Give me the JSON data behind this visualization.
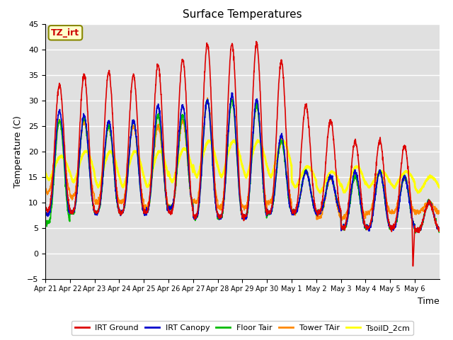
{
  "title": "Surface Temperatures",
  "xlabel": "Time",
  "ylabel": "Temperature (C)",
  "ylim": [
    -5,
    45
  ],
  "bg_color": "#e0e0e0",
  "fig_bg": "#ffffff",
  "annotation_text": "TZ_irt",
  "annotation_bg": "#ffffcc",
  "annotation_border": "#cc0000",
  "series": {
    "IRT Ground": {
      "color": "#dd0000",
      "lw": 1.2
    },
    "IRT Canopy": {
      "color": "#0000cc",
      "lw": 1.2
    },
    "Floor Tair": {
      "color": "#00bb00",
      "lw": 1.2
    },
    "Tower TAir": {
      "color": "#ff8800",
      "lw": 1.2
    },
    "TsoilD_2cm": {
      "color": "#ffff00",
      "lw": 2.0
    }
  },
  "xtick_labels": [
    "Apr 21",
    "Apr 22",
    "Apr 23",
    "Apr 24",
    "Apr 25",
    "Apr 26",
    "Apr 27",
    "Apr 28",
    "Apr 29",
    "Apr 30",
    "May 1",
    "May 2",
    "May 3",
    "May 4",
    "May 5",
    "May 6"
  ],
  "n_days": 16,
  "pts_per_day": 144,
  "day_peaks_irt_ground": [
    33,
    35,
    35.5,
    35,
    37,
    38,
    41,
    41,
    41,
    37.5,
    29,
    26,
    22,
    22,
    21,
    10
  ],
  "day_bases_irt_ground": [
    8.5,
    8,
    8,
    8,
    8,
    8,
    7,
    7,
    7,
    8,
    8,
    8,
    5,
    5,
    5,
    4.5
  ],
  "day_peaks_irt_canopy": [
    28,
    27,
    26,
    26,
    29,
    29,
    30,
    31,
    30,
    23,
    16,
    15,
    16,
    16,
    15,
    10
  ],
  "day_bases_irt_canopy": [
    7.5,
    8,
    8,
    8,
    8,
    9,
    7,
    7,
    7,
    8,
    8,
    8,
    5,
    5,
    5,
    4.5
  ],
  "day_peaks_floor_tair": [
    26,
    26.5,
    25,
    26,
    27,
    27,
    30,
    30,
    29,
    22,
    16,
    15,
    15,
    16,
    15,
    10
  ],
  "day_bases_floor_tair": [
    6,
    8,
    8,
    8,
    8,
    9,
    7,
    7,
    7,
    8,
    8,
    8,
    5,
    5,
    5,
    4.5
  ],
  "day_peaks_tower_tair": [
    26,
    26,
    25,
    25,
    25,
    26,
    30,
    30,
    29,
    22,
    16,
    15,
    15,
    16,
    15,
    10
  ],
  "day_bases_tower_tair": [
    12,
    11,
    10,
    10,
    9,
    9,
    10,
    9,
    9,
    10,
    8,
    7,
    7,
    8,
    8,
    8
  ],
  "day_peaks_tsoil": [
    19,
    20,
    20,
    20,
    20,
    20.5,
    22,
    22,
    22,
    22,
    17,
    16,
    17,
    16,
    16,
    15
  ],
  "day_bases_tsoil": [
    14.5,
    14,
    13,
    13,
    13,
    14,
    15,
    15,
    15,
    15,
    13,
    12,
    12,
    13,
    13,
    12
  ]
}
